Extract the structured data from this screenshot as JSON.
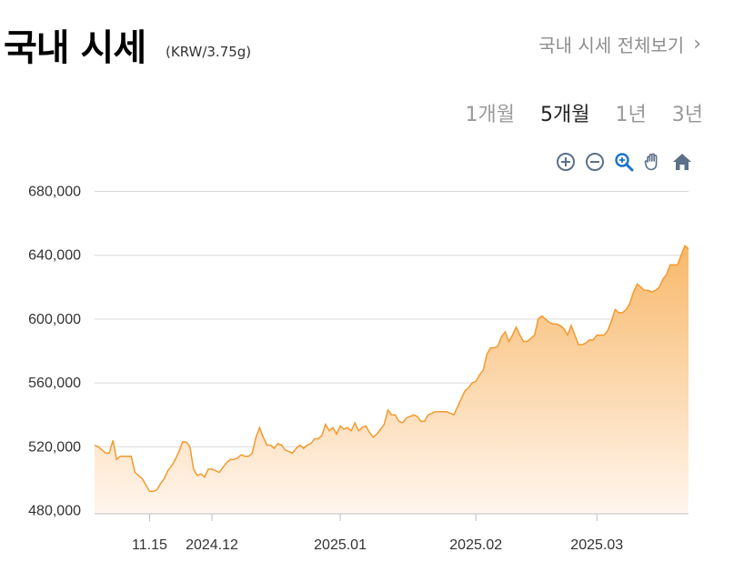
{
  "header": {
    "title": "국내 시세",
    "unit": "(KRW/3.75g)",
    "view_all": "국내 시세 전체보기",
    "chevron": "›"
  },
  "periods": [
    {
      "label": "1개월",
      "active": false
    },
    {
      "label": "5개월",
      "active": true
    },
    {
      "label": "1년",
      "active": false
    },
    {
      "label": "3년",
      "active": false
    }
  ],
  "toolbar": {
    "icons": [
      "zoom-in-icon",
      "zoom-out-icon",
      "magnifier-zoom-icon",
      "pan-hand-icon",
      "home-reset-icon"
    ]
  },
  "colors": {
    "line": "#f39a2e",
    "fill_top": "#f8b86a",
    "fill_bottom": "#fff6ee",
    "grid": "#d9d9d9",
    "icon": "#5b7089",
    "icon_active": "#1a73c9"
  },
  "chart_data": {
    "type": "area",
    "xlabel": "",
    "ylabel": "",
    "ylim": [
      478000,
      682000
    ],
    "yticks": [
      {
        "value": 680000,
        "label": "680,000"
      },
      {
        "value": 640000,
        "label": "640,000"
      },
      {
        "value": 600000,
        "label": "600,000"
      },
      {
        "value": 560000,
        "label": "560,000"
      },
      {
        "value": 520000,
        "label": "520,000"
      },
      {
        "value": 480000,
        "label": "480,000"
      }
    ],
    "xticks": [
      {
        "index": 15,
        "label": "11.15"
      },
      {
        "index": 32,
        "label": "2024.12"
      },
      {
        "index": 67,
        "label": "2025.01"
      },
      {
        "index": 104,
        "label": "2025.02"
      },
      {
        "index": 137,
        "label": "2025.03"
      }
    ],
    "grid": true,
    "legend": "none",
    "series": [
      {
        "values": [
          521000,
          520000,
          518000,
          516000,
          516000,
          524000,
          512000,
          514000,
          514000,
          514000,
          514000,
          504000,
          502000,
          500000,
          496000,
          492000,
          492000,
          493000,
          497000,
          500000,
          505000,
          508000,
          512000,
          517000,
          523000,
          523000,
          520000,
          506000,
          502000,
          503000,
          501000,
          506000,
          506000,
          505000,
          504000,
          507000,
          510000,
          512000,
          512000,
          513000,
          515000,
          514000,
          514000,
          516000,
          526000,
          532000,
          526000,
          521000,
          521000,
          519000,
          522000,
          521000,
          518000,
          517000,
          516000,
          519000,
          521000,
          519000,
          521000,
          522000,
          525000,
          525000,
          527000,
          534000,
          530000,
          532000,
          528000,
          533000,
          531000,
          532000,
          530000,
          535000,
          530000,
          532000,
          533000,
          529000,
          526000,
          528000,
          531000,
          534000,
          543000,
          540000,
          540000,
          536000,
          535000,
          538000,
          539000,
          540000,
          539000,
          536000,
          536000,
          540000,
          541000,
          542000,
          542000,
          542000,
          542000,
          541000,
          540000,
          545000,
          550000,
          555000,
          557000,
          560000,
          561000,
          565000,
          568000,
          578000,
          582000,
          582000,
          583000,
          589000,
          592000,
          586000,
          590000,
          595000,
          590000,
          586000,
          586000,
          588000,
          590000,
          600000,
          602000,
          600000,
          598000,
          597000,
          597000,
          596000,
          594000,
          590000,
          596000,
          590000,
          584000,
          584000,
          585000,
          587000,
          587000,
          590000,
          590000,
          590000,
          593000,
          599000,
          606000,
          604000,
          604000,
          606000,
          610000,
          617000,
          622000,
          620000,
          618000,
          618000,
          617000,
          618000,
          620000,
          625000,
          628000,
          634000,
          634000,
          634000,
          640000,
          646000,
          644000
        ]
      }
    ]
  }
}
